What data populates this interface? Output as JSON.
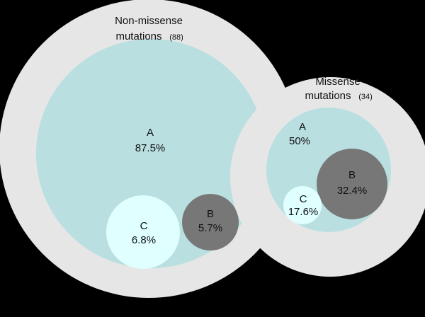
{
  "groups": [
    {
      "title": "Non-missense",
      "title_line2": "mutations",
      "count": "(88)",
      "subsets": [
        {
          "label": "A",
          "percent": "87.5%"
        },
        {
          "label": "C",
          "percent": "6.8%"
        },
        {
          "label": "B",
          "percent": "5.7%"
        }
      ]
    },
    {
      "title": "Missense",
      "title_line2": "mutations",
      "count": "(34)",
      "subsets": [
        {
          "label": "A",
          "percent": "50%"
        },
        {
          "label": "B",
          "percent": "32.4%"
        },
        {
          "label": "C",
          "percent": "17.6%"
        }
      ]
    }
  ]
}
